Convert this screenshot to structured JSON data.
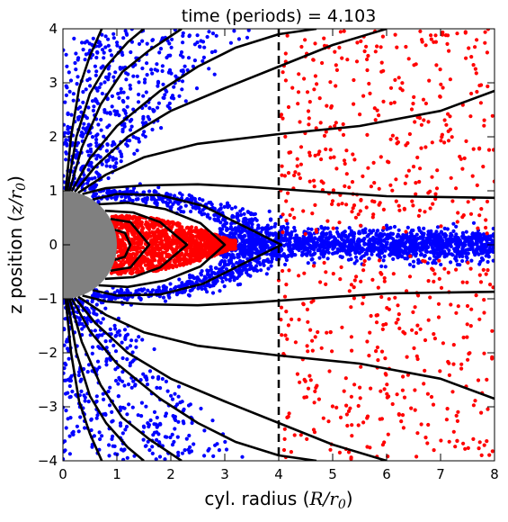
{
  "chart_data": {
    "type": "scatter",
    "title": "time (periods) = 4.103",
    "xlabel": {
      "prefix": "cyl. radius (",
      "symbol": "R",
      "unit": "r",
      "unit_sub": "0",
      "suffix": ")"
    },
    "ylabel": {
      "prefix": "z position (",
      "symbol": "z",
      "unit": "r",
      "unit_sub": "0",
      "suffix": ")"
    },
    "xlim": [
      0,
      8
    ],
    "ylim": [
      -4,
      4
    ],
    "x_ticks": [
      "0",
      "1",
      "2",
      "3",
      "4",
      "5",
      "6",
      "7",
      "8"
    ],
    "y_ticks": [
      "−4",
      "−3",
      "−2",
      "−1",
      "0",
      "1",
      "2",
      "3",
      "4"
    ],
    "grid": false,
    "legend": "none",
    "colors": {
      "blue_particles": "#0000ff",
      "red_particles": "#ff0000",
      "field_lines": "#000000",
      "star": "#808080",
      "reference_line": "#000000"
    },
    "star_radius": 1.0,
    "reference_line_x": 4.0,
    "closed_field_lines": [
      {
        "x": [
          0.96,
          1.15,
          1.25,
          1.15,
          0.96
        ],
        "y": [
          0.28,
          0.22,
          0.0,
          -0.22,
          -0.28
        ]
      },
      {
        "x": [
          0.88,
          1.25,
          1.6,
          1.25,
          0.88
        ],
        "y": [
          0.48,
          0.42,
          0.0,
          -0.42,
          -0.48
        ]
      },
      {
        "x": [
          0.78,
          1.3,
          1.8,
          2.3,
          1.8,
          1.3,
          0.78
        ],
        "y": [
          0.63,
          0.6,
          0.42,
          0.0,
          -0.42,
          -0.6,
          -0.63
        ]
      },
      {
        "x": [
          0.66,
          1.2,
          1.9,
          2.55,
          3.0,
          2.55,
          1.9,
          1.2,
          0.66
        ],
        "y": [
          0.75,
          0.78,
          0.66,
          0.4,
          0.0,
          -0.4,
          -0.66,
          -0.78,
          -0.75
        ]
      },
      {
        "x": [
          0.55,
          1.0,
          1.8,
          2.6,
          3.2,
          4.05,
          3.2,
          2.6,
          1.8,
          1.0,
          0.55
        ],
        "y": [
          0.84,
          0.94,
          0.92,
          0.72,
          0.42,
          0.0,
          -0.42,
          -0.72,
          -0.92,
          -0.94,
          -0.84
        ]
      }
    ],
    "open_field_lines": [
      {
        "x": [
          0.36,
          0.8,
          1.5,
          2.5,
          3.5,
          4.5,
          6.0,
          8.0
        ],
        "y": [
          0.94,
          1.05,
          1.1,
          1.12,
          1.07,
          1.0,
          0.9,
          0.87
        ]
      },
      {
        "x": [
          0.28,
          0.8,
          1.5,
          2.5,
          4.0,
          5.5,
          7.0,
          8.0
        ],
        "y": [
          0.96,
          1.3,
          1.62,
          1.87,
          2.05,
          2.2,
          2.48,
          2.85
        ]
      },
      {
        "x": [
          0.22,
          0.6,
          1.2,
          2.0,
          3.0,
          4.0,
          5.0,
          6.0
        ],
        "y": [
          0.98,
          1.45,
          2.0,
          2.48,
          2.9,
          3.3,
          3.7,
          4.0
        ]
      },
      {
        "x": [
          0.16,
          0.5,
          1.0,
          1.8,
          2.5,
          3.2,
          4.0,
          4.7
        ],
        "y": [
          0.99,
          1.6,
          2.2,
          2.85,
          3.3,
          3.65,
          3.9,
          4.0
        ]
      },
      {
        "x": [
          0.12,
          0.35,
          0.7,
          1.1,
          1.6,
          2.2
        ],
        "y": [
          0.99,
          1.8,
          2.6,
          3.2,
          3.6,
          4.0
        ]
      },
      {
        "x": [
          0.08,
          0.25,
          0.5,
          0.8,
          1.2,
          1.5
        ],
        "y": [
          1.0,
          2.0,
          2.8,
          3.3,
          3.75,
          4.0
        ]
      },
      {
        "x": [
          0.05,
          0.15,
          0.3,
          0.5,
          0.72
        ],
        "y": [
          1.0,
          2.0,
          2.9,
          3.5,
          4.0
        ]
      }
    ],
    "blue_particles": {
      "count": 3200,
      "regions": [
        {
          "kind": "disk",
          "x_range": [
            2.9,
            8.0
          ],
          "y_center": 0.0,
          "y_sigma": 0.14,
          "share": 0.45
        },
        {
          "kind": "shell",
          "x_range": [
            0.5,
            4.0
          ],
          "share": 0.25
        },
        {
          "kind": "polar_wedge",
          "x_range": [
            0.0,
            3.5
          ],
          "y_abs_range": [
            1.0,
            4.0
          ],
          "share": 0.3
        }
      ]
    },
    "red_particles": {
      "count": 2200,
      "regions": [
        {
          "kind": "closed_loops",
          "x_range": [
            0.9,
            3.2
          ],
          "y_abs_max": 0.55,
          "share": 0.7
        },
        {
          "kind": "scattered_outer",
          "x_range": [
            4.0,
            8.0
          ],
          "y_abs_range": [
            0.2,
            4.0
          ],
          "share": 0.3
        }
      ]
    }
  }
}
